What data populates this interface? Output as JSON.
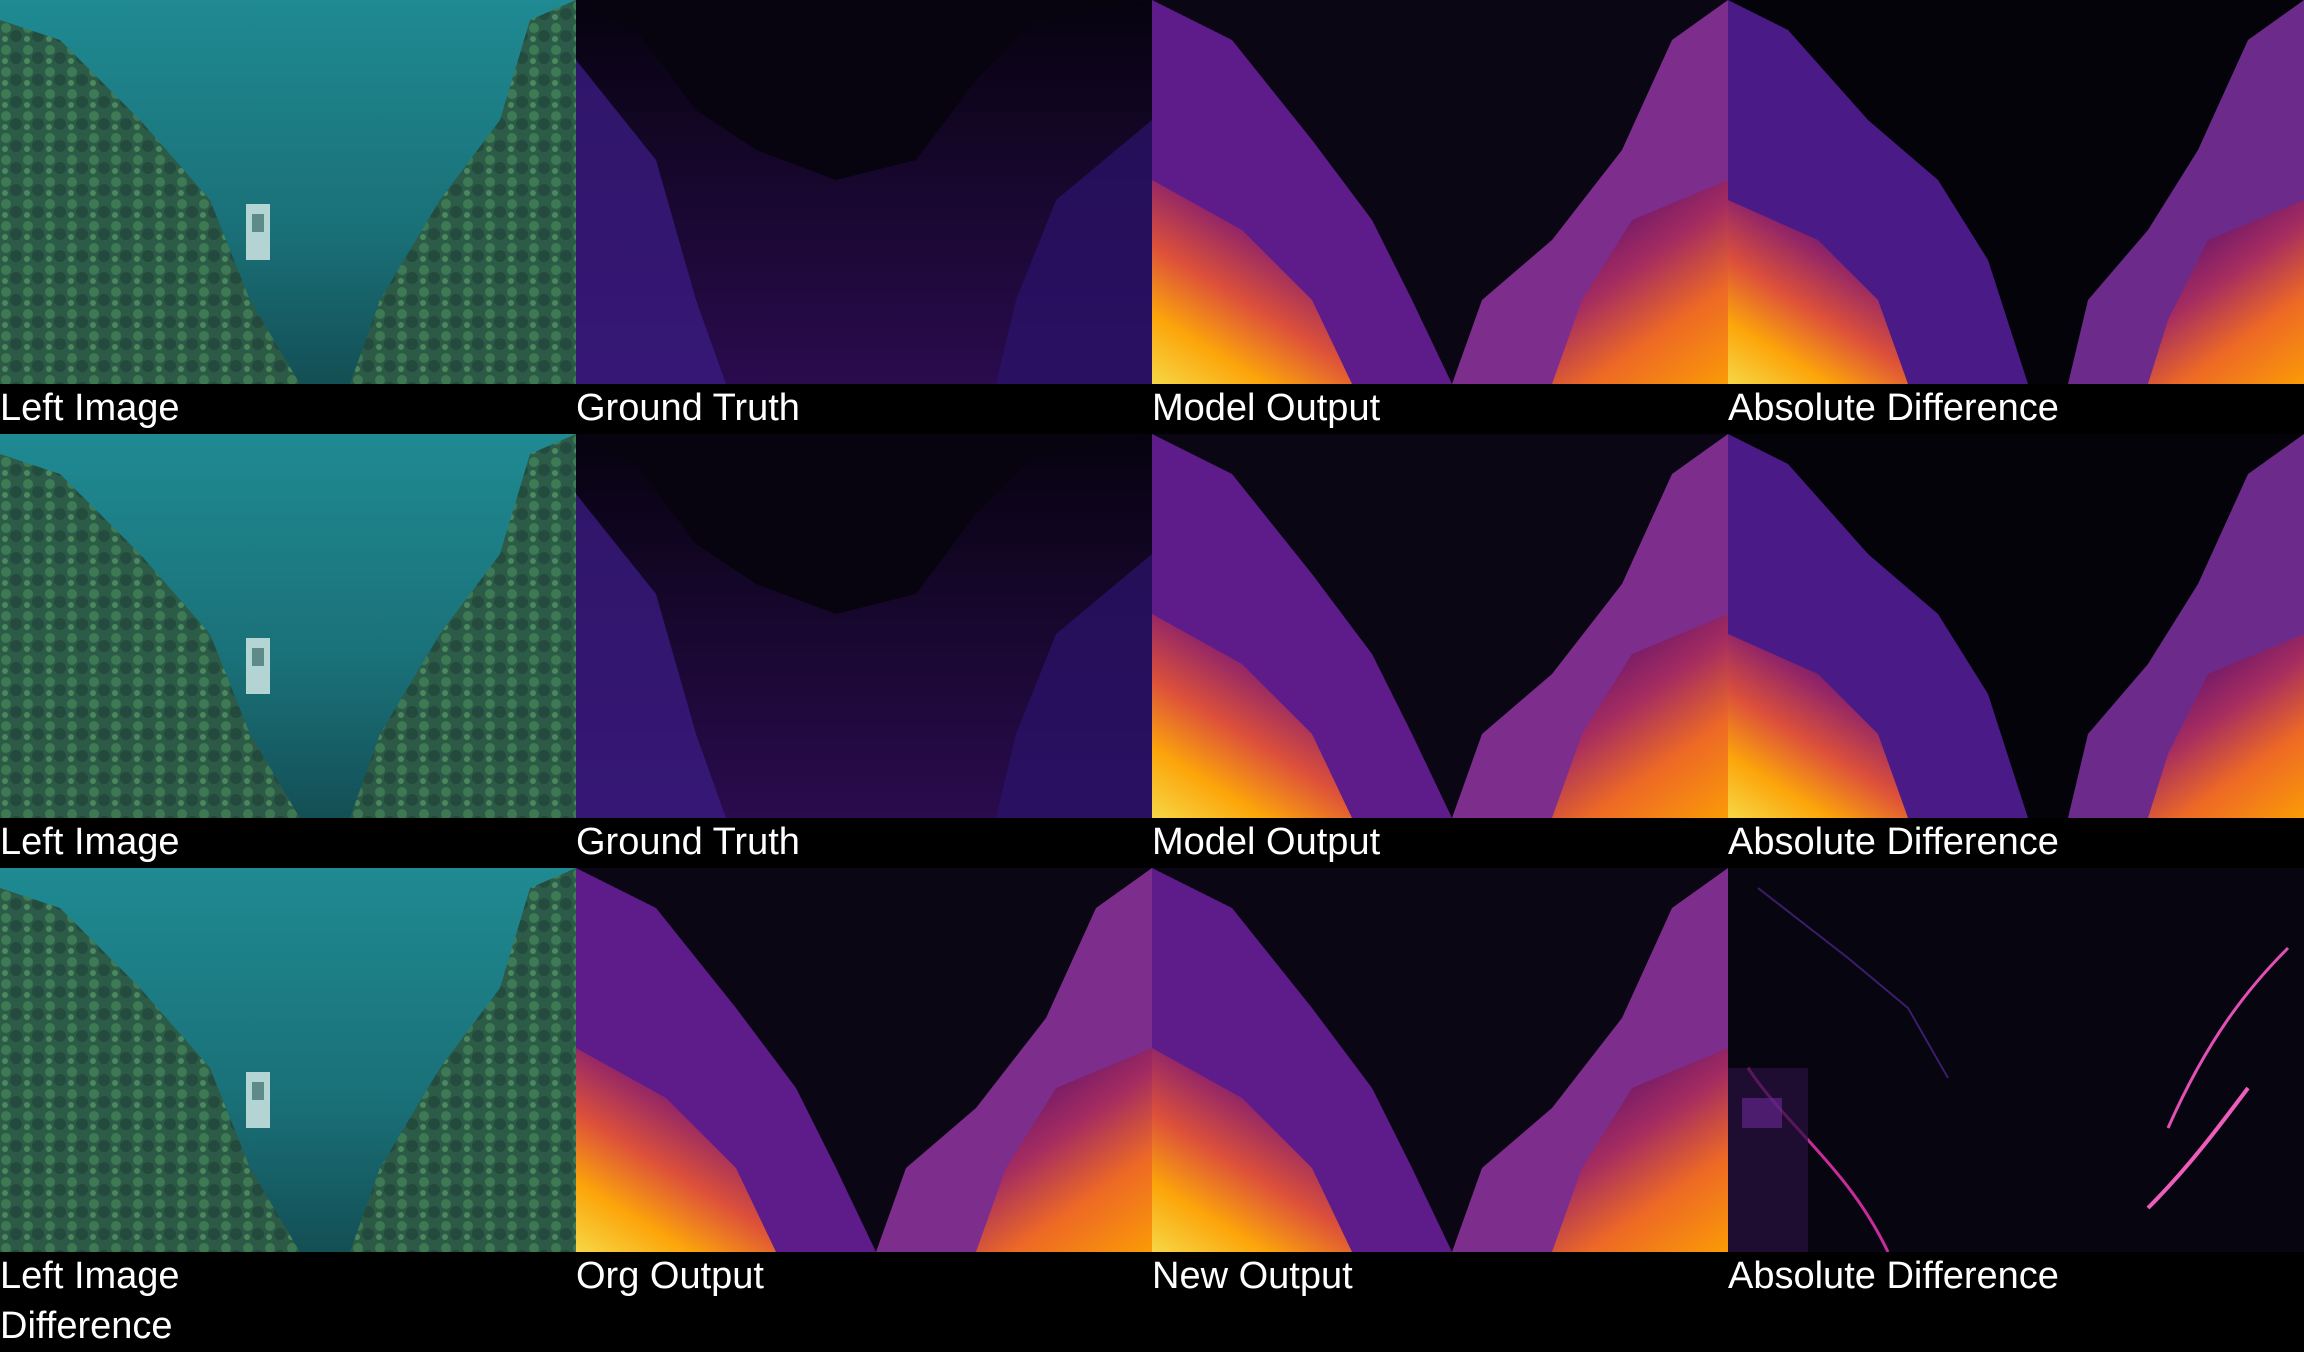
{
  "grid": {
    "rows": [
      {
        "labels": [
          "Left Image",
          "Ground Truth",
          "Model Output",
          "Absolute Difference"
        ]
      },
      {
        "labels": [
          "Left Image",
          "Ground Truth",
          "Model Output",
          "Absolute Difference"
        ]
      },
      {
        "labels": [
          "Left Image",
          "Org Output",
          "New Output",
          "Absolute Difference"
        ]
      }
    ],
    "extra_label": "Difference"
  },
  "colors": {
    "background": "#000000",
    "caption_text": "#ffffff",
    "colormap": "inferno"
  }
}
